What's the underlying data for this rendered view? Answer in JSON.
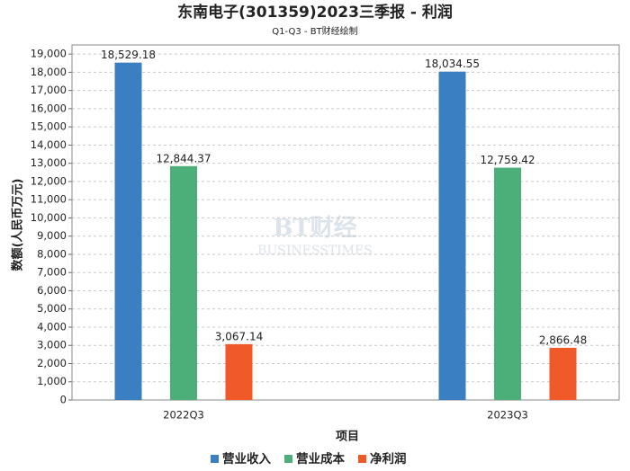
{
  "chart_data": {
    "type": "bar",
    "title": "东南电子(301359)2023三季报 - 利润",
    "subtitle": "Q1-Q3 - BT财经绘制",
    "x_label": "项目",
    "y_label": "数额(人民币万元)",
    "watermark": [
      "BT财经",
      "BUSINESSTIMES"
    ],
    "categories": [
      "2022Q3",
      "2023Q3"
    ],
    "series": [
      {
        "name": "营业收入",
        "color": "#3a7fc1",
        "values": [
          18529.18,
          18034.55
        ],
        "value_labels": [
          "18,529.18",
          "18,034.55"
        ]
      },
      {
        "name": "营业成本",
        "color": "#4caf7a",
        "values": [
          12844.37,
          12759.42
        ],
        "value_labels": [
          "12,844.37",
          "12,759.42"
        ]
      },
      {
        "name": "净利润",
        "color": "#f05a28",
        "values": [
          3067.14,
          2866.48
        ],
        "value_labels": [
          "3,067.14",
          "2,866.48"
        ]
      }
    ],
    "ylim": [
      0,
      19500
    ],
    "yticks": [
      0,
      1000,
      2000,
      3000,
      4000,
      5000,
      6000,
      7000,
      8000,
      9000,
      {
        "value": 1000,
        "label": "1,000"
      },
      {
        "value": 2000,
        "label": "2,000"
      },
      {
        "value": 3000,
        "label": "3,000"
      },
      {
        "value": 4000,
        "label": "4,000"
      },
      {
        "value": 5000,
        "label": "5,000"
      },
      {
        "value": 6000,
        "label": "6,000"
      },
      {
        "value": 7000,
        "label": "7,000"
      },
      {
        "value": 8000,
        "label": "8,000"
      },
      {
        "value": 9000,
        "label": "9,000"
      },
      {
        "value": 10000,
        "label": "10,000"
      },
      {
        "value": 11000,
        "label": "11,000"
      },
      {
        "value": 12000,
        "label": "12,000"
      },
      {
        "value": 13000,
        "label": "13,000"
      },
      {
        "value": 14000,
        "label": "14,000"
      },
      {
        "value": 15000,
        "label": "15,000"
      },
      {
        "value": 16000,
        "label": "16,000"
      },
      {
        "value": 17000,
        "label": "17,000"
      },
      {
        "value": 18000,
        "label": "18,000"
      },
      {
        "value": 19000,
        "label": "19,000"
      }
    ],
    "grid": true,
    "legend": "bottom"
  }
}
